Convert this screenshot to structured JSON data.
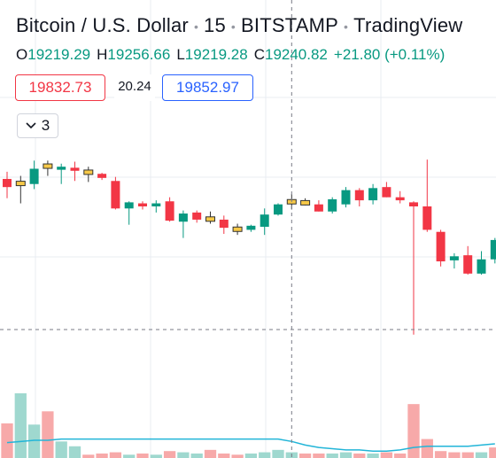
{
  "header": {
    "symbol": "Bitcoin / U.S. Dollar",
    "interval": "15",
    "exchange": "BITSTAMP",
    "source": "TradingView"
  },
  "ohlc": {
    "o_label": "O",
    "o": "19219.29",
    "h_label": "H",
    "h": "19256.66",
    "l_label": "L",
    "l": "19219.28",
    "c_label": "C",
    "c": "19240.82",
    "change": "+21.80 (+0.11%)"
  },
  "indicator": {
    "value_red": "19832.73",
    "value_mid": "20.24",
    "value_blue": "19852.97"
  },
  "collapse_button": {
    "count": "3"
  },
  "colors": {
    "up": "#089981",
    "down": "#f23645",
    "doji": "#f7c948",
    "vol_up": "#9fd8cf",
    "vol_down": "#f7a9a9",
    "ma_line": "#22b5d8",
    "grid": "#e9ecf2",
    "crosshair": "#787b86"
  },
  "chart_data": {
    "type": "candlestick",
    "y_range": [
      19080,
      19315
    ],
    "volume_range": [
      0,
      100
    ],
    "crosshair": {
      "candle_index": 21,
      "price": 19100
    },
    "candles": [
      {
        "o": 19248,
        "h": 19255,
        "l": 19229,
        "c": 19240
      },
      {
        "o": 19242,
        "h": 19251,
        "l": 19224,
        "c": 19244
      },
      {
        "o": 19243,
        "h": 19266,
        "l": 19238,
        "c": 19258
      },
      {
        "o": 19259,
        "h": 19266,
        "l": 19251,
        "c": 19261
      },
      {
        "o": 19257,
        "h": 19263,
        "l": 19243,
        "c": 19260
      },
      {
        "o": 19259,
        "h": 19265,
        "l": 19246,
        "c": 19256
      },
      {
        "o": 19255,
        "h": 19260,
        "l": 19245,
        "c": 19253
      },
      {
        "o": 19253,
        "h": 19254,
        "l": 19247,
        "c": 19249
      },
      {
        "o": 19246,
        "h": 19250,
        "l": 19218,
        "c": 19219
      },
      {
        "o": 19219,
        "h": 19226,
        "l": 19203,
        "c": 19225
      },
      {
        "o": 19224,
        "h": 19226,
        "l": 19218,
        "c": 19221
      },
      {
        "o": 19221,
        "h": 19227,
        "l": 19215,
        "c": 19224
      },
      {
        "o": 19226,
        "h": 19230,
        "l": 19206,
        "c": 19207
      },
      {
        "o": 19206,
        "h": 19217,
        "l": 19190,
        "c": 19214
      },
      {
        "o": 19215,
        "h": 19217,
        "l": 19205,
        "c": 19208
      },
      {
        "o": 19209,
        "h": 19216,
        "l": 19204,
        "c": 19209
      },
      {
        "o": 19208,
        "h": 19212,
        "l": 19194,
        "c": 19200
      },
      {
        "o": 19198,
        "h": 19204,
        "l": 19193,
        "c": 19199
      },
      {
        "o": 19198,
        "h": 19203,
        "l": 19196,
        "c": 19202
      },
      {
        "o": 19201,
        "h": 19219,
        "l": 19193,
        "c": 19213
      },
      {
        "o": 19213,
        "h": 19224,
        "l": 19212,
        "c": 19223
      },
      {
        "o": 19224,
        "h": 19233,
        "l": 19218,
        "c": 19226
      },
      {
        "o": 19225,
        "h": 19229,
        "l": 19222,
        "c": 19224
      },
      {
        "o": 19223,
        "h": 19227,
        "l": 19216,
        "c": 19216
      },
      {
        "o": 19216,
        "h": 19230,
        "l": 19214,
        "c": 19228
      },
      {
        "o": 19223,
        "h": 19240,
        "l": 19220,
        "c": 19237
      },
      {
        "o": 19237,
        "h": 19239,
        "l": 19221,
        "c": 19227
      },
      {
        "o": 19227,
        "h": 19243,
        "l": 19223,
        "c": 19239
      },
      {
        "o": 19240,
        "h": 19245,
        "l": 19230,
        "c": 19230
      },
      {
        "o": 19230,
        "h": 19236,
        "l": 19224,
        "c": 19227
      },
      {
        "o": 19225,
        "h": 19226,
        "l": 19095,
        "c": 19221
      },
      {
        "o": 19221,
        "h": 19267,
        "l": 19196,
        "c": 19198
      },
      {
        "o": 19196,
        "h": 19198,
        "l": 19162,
        "c": 19167
      },
      {
        "o": 19168,
        "h": 19175,
        "l": 19160,
        "c": 19172
      },
      {
        "o": 19173,
        "h": 19182,
        "l": 19154,
        "c": 19155
      },
      {
        "o": 19155,
        "h": 19177,
        "l": 19154,
        "c": 19169
      },
      {
        "o": 19169,
        "h": 19190,
        "l": 19165,
        "c": 19188
      }
    ],
    "volumes": [
      {
        "v": 28,
        "up": false
      },
      {
        "v": 53,
        "up": true
      },
      {
        "v": 27,
        "up": true
      },
      {
        "v": 38,
        "up": false
      },
      {
        "v": 13,
        "up": true
      },
      {
        "v": 9,
        "up": true
      },
      {
        "v": 2,
        "up": false
      },
      {
        "v": 3,
        "up": false
      },
      {
        "v": 4,
        "up": false
      },
      {
        "v": 2,
        "up": true
      },
      {
        "v": 3,
        "up": false
      },
      {
        "v": 2,
        "up": true
      },
      {
        "v": 5,
        "up": false
      },
      {
        "v": 4,
        "up": true
      },
      {
        "v": 3,
        "up": true
      },
      {
        "v": 6,
        "up": false
      },
      {
        "v": 3,
        "up": false
      },
      {
        "v": 2,
        "up": false
      },
      {
        "v": 3,
        "up": true
      },
      {
        "v": 4,
        "up": true
      },
      {
        "v": 6,
        "up": true
      },
      {
        "v": 4,
        "up": true
      },
      {
        "v": 3,
        "up": false
      },
      {
        "v": 3,
        "up": false
      },
      {
        "v": 3,
        "up": true
      },
      {
        "v": 4,
        "up": true
      },
      {
        "v": 3,
        "up": false
      },
      {
        "v": 3,
        "up": true
      },
      {
        "v": 4,
        "up": false
      },
      {
        "v": 3,
        "up": false
      },
      {
        "v": 44,
        "up": false
      },
      {
        "v": 15,
        "up": false
      },
      {
        "v": 5,
        "up": false
      },
      {
        "v": 4,
        "up": false
      },
      {
        "v": 4,
        "up": false
      },
      {
        "v": 4,
        "up": true
      },
      {
        "v": 8,
        "up": false
      }
    ],
    "volume_ma": [
      12,
      13,
      14,
      14,
      15,
      15,
      15,
      15,
      15,
      15,
      15,
      15,
      15,
      15,
      15,
      15,
      15,
      15,
      15,
      15,
      15,
      13,
      10,
      8,
      7,
      6,
      6,
      5,
      5,
      6,
      8,
      9,
      9,
      9,
      9,
      10,
      11
    ]
  }
}
